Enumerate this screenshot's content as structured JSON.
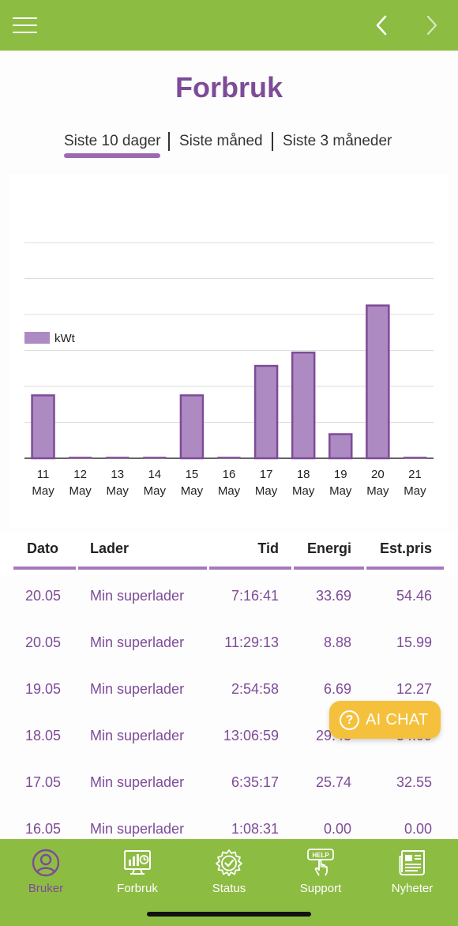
{
  "header": {
    "title": "Forbruk"
  },
  "tabs": [
    {
      "label": "Siste 10 dager",
      "active": true
    },
    {
      "label": "Siste måned",
      "active": false
    },
    {
      "label": "Siste 3 måneder",
      "active": false
    }
  ],
  "chart_data": {
    "type": "bar",
    "legend": "kWt",
    "legend_position": "top-left",
    "categories": [
      [
        "11",
        "May"
      ],
      [
        "12",
        "May"
      ],
      [
        "13",
        "May"
      ],
      [
        "14",
        "May"
      ],
      [
        "15",
        "May"
      ],
      [
        "16",
        "May"
      ],
      [
        "17",
        "May"
      ],
      [
        "18",
        "May"
      ],
      [
        "19",
        "May"
      ],
      [
        "20",
        "May"
      ],
      [
        "21",
        "May"
      ]
    ],
    "series": [
      {
        "name": "kWt",
        "values": [
          17.5,
          0,
          0,
          0,
          17.5,
          0,
          25.7,
          29.4,
          6.7,
          42.5,
          0
        ]
      }
    ],
    "ylim": [
      0,
      60
    ],
    "grid": true,
    "bar_color": "#ae8ac3",
    "bar_edge_color": "#7e4b97"
  },
  "table": {
    "columns": [
      "Dato",
      "Lader",
      "Tid",
      "Energi",
      "Est.pris"
    ],
    "rows": [
      [
        "20.05",
        "Min superlader",
        "7:16:41",
        "33.69",
        "54.46"
      ],
      [
        "20.05",
        "Min superlader",
        "11:29:13",
        "8.88",
        "15.99"
      ],
      [
        "19.05",
        "Min superlader",
        "2:54:58",
        "6.69",
        "12.27"
      ],
      [
        "18.05",
        "Min superlader",
        "13:06:59",
        "29.43",
        "54.09"
      ],
      [
        "17.05",
        "Min superlader",
        "6:35:17",
        "25.74",
        "32.55"
      ],
      [
        "16.05",
        "Min superlader",
        "1:08:31",
        "0.00",
        "0.00"
      ]
    ]
  },
  "ai_chat": {
    "label": "AI CHAT",
    "icon": "question-circle-icon"
  },
  "bottom_nav": [
    {
      "label": "Bruker",
      "icon": "user-icon",
      "active": true
    },
    {
      "label": "Forbruk",
      "icon": "monitor-chart-icon",
      "active": false
    },
    {
      "label": "Status",
      "icon": "gear-check-icon",
      "active": false
    },
    {
      "label": "Support",
      "icon": "help-hand-icon",
      "active": false
    },
    {
      "label": "Nyheter",
      "icon": "newspaper-icon",
      "active": false
    }
  ],
  "colors": {
    "brand_green": "#8dbc43",
    "brand_purple": "#7e4b97",
    "accent_yellow": "#f5c13c"
  }
}
